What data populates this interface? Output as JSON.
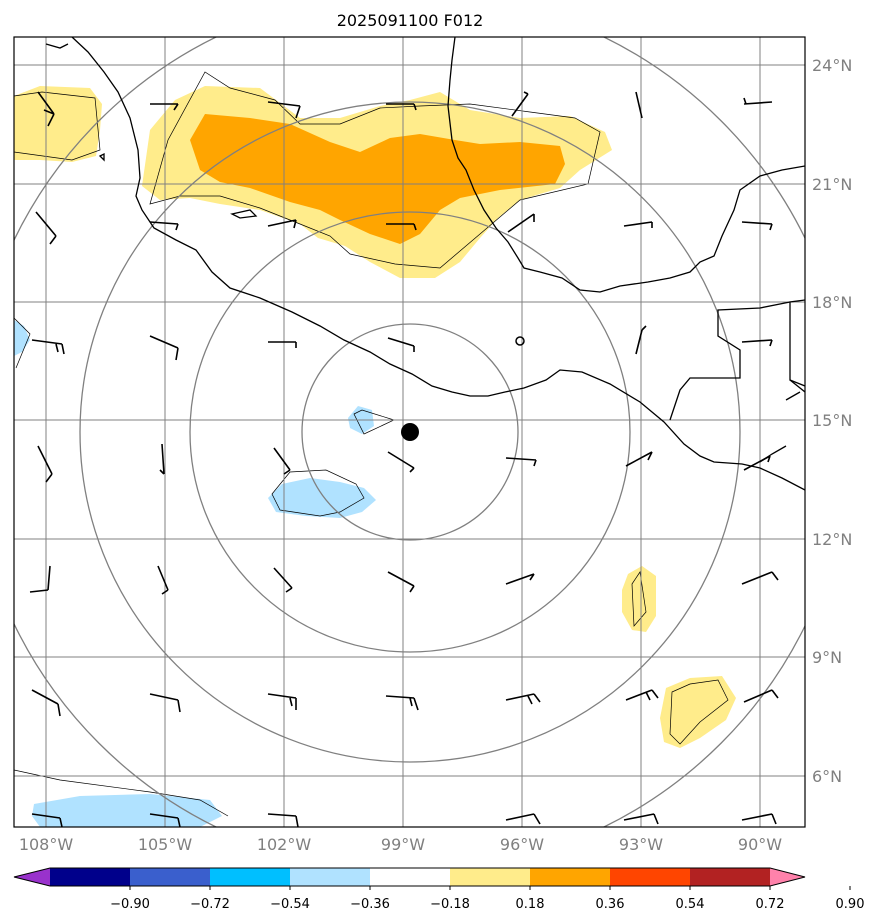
{
  "title": "2025091100 F012",
  "lat_labels": [
    "24°N",
    "21°N",
    "18°N",
    "15°N",
    "12°N",
    "9°N",
    "6°N"
  ],
  "lon_labels": [
    "108°W",
    "105°W",
    "102°W",
    "99°W",
    "96°W",
    "93°W",
    "90°W"
  ],
  "colorbar": {
    "colors": [
      "#9932cc",
      "#00008b",
      "#3a5fcd",
      "#00bfff",
      "#b0e2ff",
      "#ffffff",
      "#ffec8b",
      "#ffa500",
      "#ff4500",
      "#b22222",
      "#ff82ab"
    ],
    "tick_labels": [
      "−0.90",
      "−0.72",
      "−0.54",
      "−0.36",
      "−0.18",
      "0.18",
      "0.36",
      "0.54",
      "0.72",
      "0.90"
    ]
  },
  "colors": {
    "grid": "#808080",
    "range_ring": "#808080",
    "coastline": "#000000",
    "warm_light": "#ffec8b",
    "warm_dark": "#ffa500",
    "cool_light": "#b0e2ff",
    "cool_medium": "#87ceeb",
    "storm_center": "#000000"
  },
  "map": {
    "storm_center": "storm-center-marker",
    "range_rings": 4
  }
}
